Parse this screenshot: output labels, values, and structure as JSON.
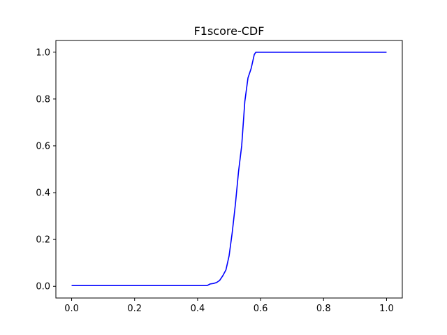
{
  "chart_data": {
    "type": "line",
    "title": "F1score-CDF",
    "xlabel": "",
    "ylabel": "",
    "xlim": [
      -0.05,
      1.05
    ],
    "ylim": [
      -0.05,
      1.05
    ],
    "xticks": [
      "0.0",
      "0.2",
      "0.4",
      "0.6",
      "0.8",
      "1.0"
    ],
    "yticks": [
      "0.0",
      "0.2",
      "0.4",
      "0.6",
      "0.8",
      "1.0"
    ],
    "grid": false,
    "legend": "none",
    "series": [
      {
        "color": "#0000ff",
        "x": [
          0.0,
          0.43,
          0.44,
          0.45,
          0.46,
          0.47,
          0.48,
          0.49,
          0.5,
          0.51,
          0.52,
          0.53,
          0.54,
          0.55,
          0.56,
          0.57,
          0.58,
          0.585,
          0.6,
          1.0
        ],
        "y": [
          0.003,
          0.003,
          0.01,
          0.012,
          0.016,
          0.025,
          0.045,
          0.07,
          0.13,
          0.23,
          0.35,
          0.49,
          0.6,
          0.79,
          0.89,
          0.93,
          0.99,
          1.0,
          1.0,
          1.0
        ]
      }
    ]
  }
}
